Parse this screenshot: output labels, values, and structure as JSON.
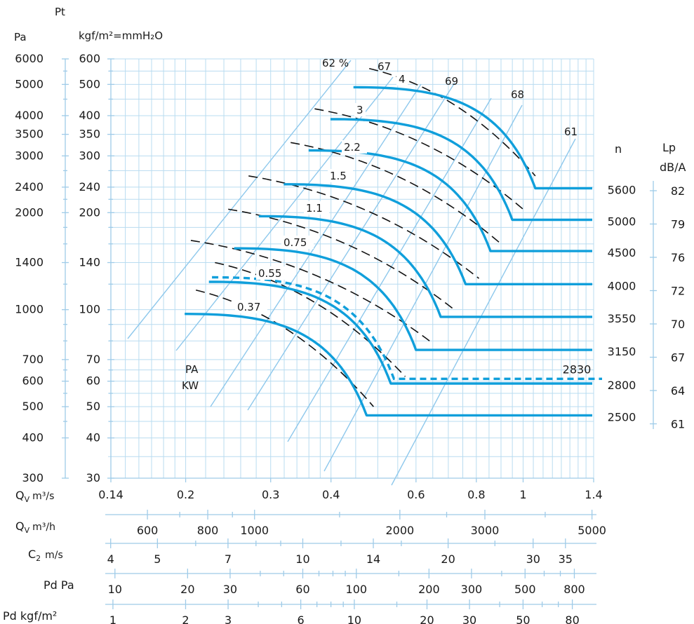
{
  "chart_data": {
    "type": "line",
    "title": "",
    "pressure_axes": {
      "pa_unit": "Pa",
      "pt_label": "Pt",
      "kgf_unit": "kgf/m²=mmH₂O",
      "pa_ticks": [
        {
          "label": "6000",
          "value": 600
        },
        {
          "label": "5000",
          "value": 500
        },
        {
          "label": "4000",
          "value": 400
        },
        {
          "label": "3500",
          "value": 350
        },
        {
          "label": "3000",
          "value": 300
        },
        {
          "label": "2400",
          "value": 240
        },
        {
          "label": "2000",
          "value": 200
        },
        {
          "label": "1400",
          "value": 140
        },
        {
          "label": "1000",
          "value": 100
        },
        {
          "label": "700",
          "value": 70
        },
        {
          "label": "600",
          "value": 60
        },
        {
          "label": "500",
          "value": 50
        },
        {
          "label": "400",
          "value": 40
        },
        {
          "label": "300",
          "value": 30
        }
      ],
      "kgf_ticks": [
        {
          "label": "600",
          "value": 600
        },
        {
          "label": "500",
          "value": 500
        },
        {
          "label": "400",
          "value": 400
        },
        {
          "label": "350",
          "value": 350
        },
        {
          "label": "300",
          "value": 300
        },
        {
          "label": "240",
          "value": 240
        },
        {
          "label": "200",
          "value": 200
        },
        {
          "label": "140",
          "value": 140
        },
        {
          "label": "100",
          "value": 100
        },
        {
          "label": "70",
          "value": 70
        },
        {
          "label": "60",
          "value": 60
        },
        {
          "label": "50",
          "value": 50
        },
        {
          "label": "40",
          "value": 40
        },
        {
          "label": "30",
          "value": 30
        }
      ],
      "ylim": [
        30,
        600
      ],
      "scale": "log"
    },
    "x_axes": {
      "qv_s": {
        "label_main": "Q",
        "label_sub": "V",
        "label_unit": "m³/s",
        "xlim": [
          0.14,
          1.4
        ],
        "scale": "log",
        "ticks": [
          {
            "label": "0.14",
            "value": 0.14
          },
          {
            "label": "0.2",
            "value": 0.2
          },
          {
            "label": "0.3",
            "value": 0.3
          },
          {
            "label": "0.4",
            "value": 0.4
          },
          {
            "label": "0.6",
            "value": 0.6
          },
          {
            "label": "0.8",
            "value": 0.8
          },
          {
            "label": "1",
            "value": 1
          },
          {
            "label": "1.4",
            "value": 1.4
          }
        ]
      },
      "qv_h": {
        "label_main": "Q",
        "label_sub": "V",
        "label_unit": "m³/h",
        "ticks": [
          {
            "label": "600",
            "value": 600
          },
          {
            "label": "800",
            "value": 800
          },
          {
            "label": "1000",
            "value": 1000
          },
          {
            "label": "2000",
            "value": 2000
          },
          {
            "label": "3000",
            "value": 3000
          },
          {
            "label": "5000",
            "value": 5000
          }
        ]
      },
      "c2": {
        "label_main": "C",
        "label_sub": "2",
        "label_unit": "m/s",
        "ticks": [
          {
            "label": "4",
            "value": 4
          },
          {
            "label": "5",
            "value": 5
          },
          {
            "label": "7",
            "value": 7
          },
          {
            "label": "10",
            "value": 10
          },
          {
            "label": "14",
            "value": 14
          },
          {
            "label": "20",
            "value": 20
          },
          {
            "label": "30",
            "value": 30
          },
          {
            "label": "35",
            "value": 35
          }
        ]
      },
      "pd_pa": {
        "label": "Pd Pa",
        "ticks": [
          {
            "label": "10",
            "value": 10
          },
          {
            "label": "20",
            "value": 20
          },
          {
            "label": "30",
            "value": 30
          },
          {
            "label": "60",
            "value": 60
          },
          {
            "label": "100",
            "value": 100
          },
          {
            "label": "200",
            "value": 200
          },
          {
            "label": "300",
            "value": 300
          },
          {
            "label": "500",
            "value": 500
          },
          {
            "label": "800",
            "value": 800
          }
        ]
      },
      "pd_kgf": {
        "label": "Pd kgf/m²",
        "ticks": [
          {
            "label": "1",
            "value": 1
          },
          {
            "label": "2",
            "value": 2
          },
          {
            "label": "3",
            "value": 3
          },
          {
            "label": "6",
            "value": 6
          },
          {
            "label": "10",
            "value": 10
          },
          {
            "label": "20",
            "value": 20
          },
          {
            "label": "30",
            "value": 30
          },
          {
            "label": "50",
            "value": 50
          },
          {
            "label": "80",
            "value": 80
          }
        ]
      }
    },
    "speed_curves": [
      {
        "n": "5600",
        "lp": "82",
        "q_max": 1.06,
        "p_max": 490,
        "p_end": 238
      },
      {
        "n": "5000",
        "lp": "79",
        "q_max": 0.95,
        "p_max": 390,
        "p_end": 190
      },
      {
        "n": "4500",
        "lp": "76",
        "q_max": 0.856,
        "p_max": 312,
        "p_end": 152
      },
      {
        "n": "4000",
        "lp": "72",
        "q_max": 0.76,
        "p_max": 245,
        "p_end": 120
      },
      {
        "n": "3550",
        "lp": "70",
        "q_max": 0.675,
        "p_max": 195,
        "p_end": 95
      },
      {
        "n": "3150",
        "lp": "67",
        "q_max": 0.6,
        "p_max": 155,
        "p_end": 75
      },
      {
        "n": "2800",
        "lp": "64",
        "q_max": 0.532,
        "p_max": 122,
        "p_end": 59
      },
      {
        "n": "2500",
        "lp": "61",
        "q_max": 0.474,
        "p_max": 97,
        "p_end": 47
      }
    ],
    "dashed_speed_curve": {
      "n": "2830",
      "q_max": 0.54,
      "p_max": 126,
      "p_end": 61
    },
    "power_curves_kw": [
      "0.37",
      "0.55",
      "0.75",
      "1.1",
      "1.5",
      "2.2",
      "3",
      "4"
    ],
    "efficiency_lines": [
      "62 %",
      "67",
      "69",
      "68",
      "61"
    ],
    "labels": {
      "n_header": "n",
      "lp_header": "Lp",
      "lp_unit": "dB/A",
      "legend_pa": "PA",
      "legend_kw": "KW"
    }
  }
}
